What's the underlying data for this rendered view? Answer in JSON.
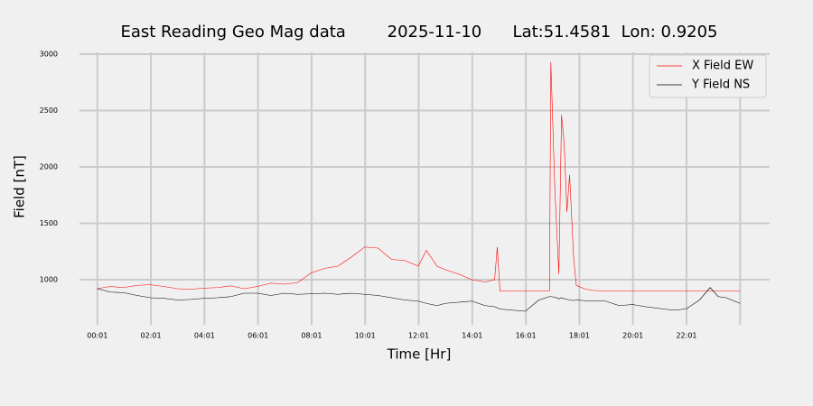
{
  "chart_data": {
    "type": "line",
    "title": "East Reading Geo Mag data        2025-11-10      Lat:51.4581  Lon: 0.9205",
    "xlabel": "Time  [Hr]",
    "ylabel": "Field  [nT]",
    "x": [
      0.017,
      0.5,
      1,
      1.5,
      2,
      2.5,
      3,
      3.5,
      4,
      4.5,
      5,
      5.5,
      6,
      6.5,
      7,
      7.5,
      8,
      8.5,
      9,
      9.5,
      10,
      10.5,
      11,
      11.5,
      12,
      12.3,
      12.7,
      13,
      13.5,
      14,
      14.5,
      14.85,
      14.95,
      15.05,
      15.5,
      16,
      16.5,
      16.9,
      16.95,
      17.1,
      17.25,
      17.35,
      17.45,
      17.55,
      17.65,
      17.8,
      17.9,
      18.2,
      18.5,
      19,
      19.5,
      20,
      20.5,
      21,
      21.5,
      22,
      22.5,
      22.9,
      23.2,
      23.5,
      24.017
    ],
    "series": [
      {
        "name": "X Field EW",
        "color": "#ff0000",
        "values": [
          920,
          940,
          930,
          950,
          955,
          940,
          920,
          915,
          925,
          930,
          945,
          920,
          940,
          970,
          960,
          975,
          1060,
          1100,
          1120,
          1200,
          1290,
          1280,
          1180,
          1170,
          1120,
          1260,
          1120,
          1090,
          1050,
          1000,
          980,
          1000,
          1290,
          900,
          900,
          900,
          900,
          900,
          2930,
          1800,
          1050,
          2460,
          2200,
          1600,
          1930,
          1200,
          950,
          920,
          905,
          900,
          900,
          900,
          900,
          900,
          900,
          900,
          900,
          900,
          900,
          900,
          900
        ]
      },
      {
        "name": "Y Field NS",
        "color": "#000000",
        "values": [
          920,
          890,
          885,
          860,
          840,
          835,
          820,
          825,
          835,
          840,
          850,
          880,
          880,
          860,
          880,
          870,
          875,
          880,
          870,
          880,
          870,
          860,
          840,
          820,
          810,
          790,
          770,
          790,
          800,
          810,
          770,
          760,
          750,
          740,
          730,
          720,
          820,
          850,
          850,
          845,
          830,
          840,
          830,
          825,
          820,
          815,
          820,
          815,
          810,
          810,
          770,
          780,
          760,
          745,
          730,
          740,
          820,
          930,
          850,
          840,
          790
        ]
      }
    ],
    "xlim": [
      -0.65,
      25.12
    ],
    "ylim": [
      560,
      3120
    ],
    "xticks": [
      {
        "value": 0.017,
        "label": "00:01"
      },
      {
        "value": 2.017,
        "label": "02:01"
      },
      {
        "value": 4.017,
        "label": "04:01"
      },
      {
        "value": 6.017,
        "label": "06:01"
      },
      {
        "value": 8.017,
        "label": "08:01"
      },
      {
        "value": 10.017,
        "label": "10:01"
      },
      {
        "value": 12.017,
        "label": "12:01"
      },
      {
        "value": 14.017,
        "label": "14:01"
      },
      {
        "value": 16.017,
        "label": "16:01"
      },
      {
        "value": 18.017,
        "label": "18:01"
      },
      {
        "value": 20.017,
        "label": "20:01"
      },
      {
        "value": 22.017,
        "label": "22:01"
      },
      {
        "value": 24.017,
        "label": null
      }
    ],
    "yticks": [
      1000,
      1500,
      2000,
      2500,
      3000
    ],
    "grid": true,
    "legend": "upper right"
  }
}
